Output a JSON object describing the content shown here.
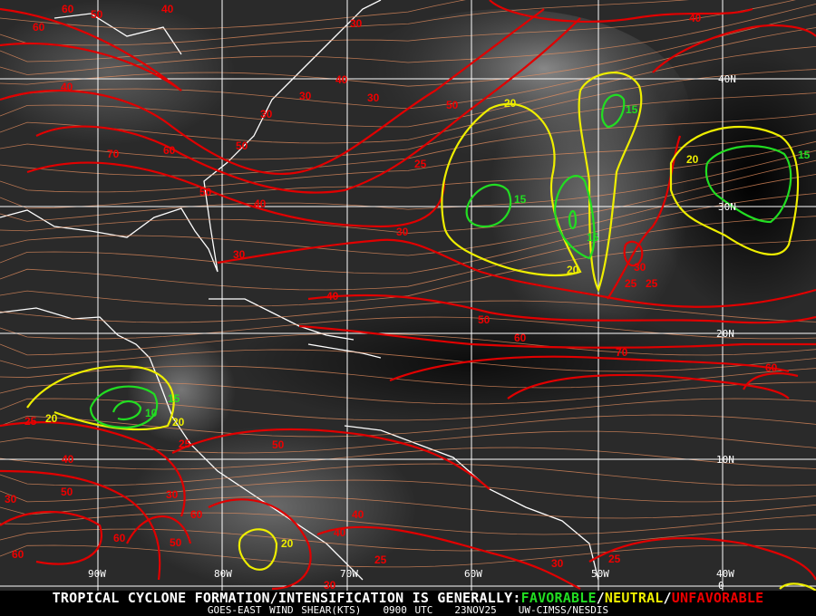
{
  "product": {
    "satellite": "GOES-EAST",
    "field": "WIND SHEAR(KTS)",
    "time": "0900 UTC",
    "date": "23NOV25",
    "credit": "UW-CIMSS/NESDIS"
  },
  "legend": {
    "prefix": "TROPICAL CYCLONE FORMATION/INTENSIFICATION IS GENERALLY:",
    "favorable": "FAVORABLE",
    "sep1": "/",
    "neutral": "NEUTRAL",
    "sep2": "/",
    "unfavorable": "UNFAVORABLE",
    "colors": {
      "favorable": "#22dd22",
      "neutral": "#eeee00",
      "unfavorable": "#ee0000",
      "streamlines": "#e89060"
    }
  },
  "grid": {
    "longitudes": [
      "90W",
      "80W",
      "70W",
      "60W",
      "50W",
      "40W"
    ],
    "latitudes": [
      "40N",
      "30N",
      "20N",
      "10N",
      "0"
    ]
  },
  "contour_labels": [
    "60",
    "50",
    "40",
    "30",
    "30",
    "40",
    "30",
    "50",
    "50",
    "60",
    "30",
    "40",
    "70",
    "60",
    "50",
    "40",
    "30",
    "30",
    "25",
    "20",
    "15",
    "15",
    "15",
    "20",
    "20",
    "30",
    "25",
    "25",
    "15",
    "40",
    "50",
    "60",
    "70",
    "60",
    "20",
    "15",
    "10",
    "20",
    "25",
    "25",
    "40",
    "30",
    "50",
    "30",
    "50",
    "60",
    "60",
    "60",
    "40",
    "50",
    "40",
    "20",
    "25",
    "30",
    "25",
    "30",
    "40"
  ],
  "contour_levels": [
    "u",
    "u",
    "u",
    "u",
    "u",
    "u",
    "u",
    "u",
    "u",
    "u",
    "u",
    "u",
    "u",
    "u",
    "u",
    "u",
    "u",
    "u",
    "u",
    "n",
    "f",
    "f",
    "f",
    "n",
    "n",
    "u",
    "u",
    "u",
    "f",
    "u",
    "u",
    "u",
    "u",
    "u",
    "n",
    "f",
    "f",
    "n",
    "u",
    "u",
    "u",
    "u",
    "u",
    "u",
    "u",
    "u",
    "u",
    "u",
    "u",
    "u",
    "u",
    "n",
    "u",
    "u",
    "u",
    "u",
    "u"
  ]
}
